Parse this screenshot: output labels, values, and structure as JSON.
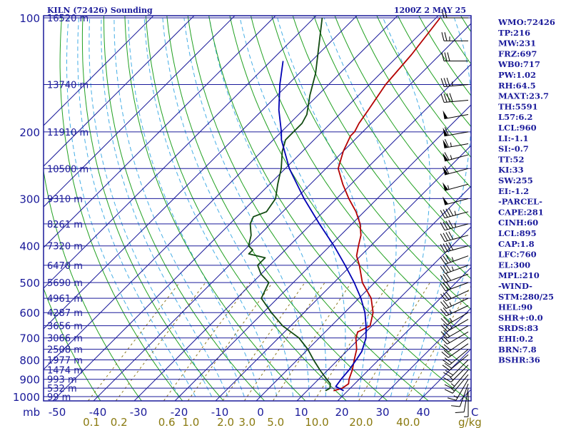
{
  "chart_data": {
    "type": "skew-t",
    "title_left": "KILN (72426) Sounding",
    "title_right": "1200Z  2 MAY 25",
    "pressure_axis": {
      "unit_label": "mb",
      "ticks": [
        {
          "p": 100,
          "label": "100"
        },
        {
          "p": 200,
          "label": "200"
        },
        {
          "p": 300,
          "label": "300"
        },
        {
          "p": 400,
          "label": "400"
        },
        {
          "p": 500,
          "label": "500"
        },
        {
          "p": 600,
          "label": "600"
        },
        {
          "p": 700,
          "label": "700"
        },
        {
          "p": 800,
          "label": "800"
        },
        {
          "p": 900,
          "label": "900"
        },
        {
          "p": 1000,
          "label": "1000"
        }
      ]
    },
    "heights": [
      {
        "p": 100,
        "label": "16520 m"
      },
      {
        "p": 150,
        "label": "13740 m"
      },
      {
        "p": 200,
        "label": "11910 m"
      },
      {
        "p": 250,
        "label": "10500 m"
      },
      {
        "p": 300,
        "label": "9310 m"
      },
      {
        "p": 350,
        "label": "8261 m"
      },
      {
        "p": 400,
        "label": "7320 m"
      },
      {
        "p": 450,
        "label": "6470 m"
      },
      {
        "p": 500,
        "label": "5690 m"
      },
      {
        "p": 550,
        "label": "4961 m"
      },
      {
        "p": 600,
        "label": "4287 m"
      },
      {
        "p": 650,
        "label": "3656 m"
      },
      {
        "p": 700,
        "label": "3066 m"
      },
      {
        "p": 750,
        "label": "2508 m"
      },
      {
        "p": 800,
        "label": "1977 m"
      },
      {
        "p": 850,
        "label": "1474 m"
      },
      {
        "p": 900,
        "label": "993 m"
      },
      {
        "p": 950,
        "label": "532 m"
      },
      {
        "p": 1000,
        "label": "99 m"
      }
    ],
    "temp_axis": {
      "unit_label": "C",
      "ticks": [
        {
          "t": -50,
          "label": "-50"
        },
        {
          "t": -40,
          "label": "-40"
        },
        {
          "t": -30,
          "label": "-30"
        },
        {
          "t": -20,
          "label": "-20"
        },
        {
          "t": -10,
          "label": "-10"
        },
        {
          "t": 0,
          "label": "0"
        },
        {
          "t": 10,
          "label": "10"
        },
        {
          "t": 20,
          "label": "20"
        },
        {
          "t": 30,
          "label": "30"
        },
        {
          "t": 40,
          "label": "40"
        }
      ]
    },
    "mixing_ratio_axis": {
      "unit_label": "g/kg",
      "ticks": [
        {
          "w": 0.1,
          "label": "0.1"
        },
        {
          "w": 0.2,
          "label": "0.2"
        },
        {
          "w": 0.6,
          "label": "0.6"
        },
        {
          "w": 1.0,
          "label": "1.0"
        },
        {
          "w": 2.0,
          "label": "2.0"
        },
        {
          "w": 3.0,
          "label": "3.0"
        },
        {
          "w": 5.0,
          "label": "5.0"
        },
        {
          "w": 10.0,
          "label": "10.0"
        },
        {
          "w": 20.0,
          "label": "20.0"
        },
        {
          "w": 40.0,
          "label": "40.0"
        }
      ]
    },
    "series": [
      {
        "name": "temperature",
        "color": "#b40000",
        "points": [
          [
            965,
            16.5
          ],
          [
            950,
            18
          ],
          [
            925,
            18.5
          ],
          [
            900,
            17.5
          ],
          [
            850,
            16
          ],
          [
            800,
            14
          ],
          [
            750,
            12
          ],
          [
            700,
            9
          ],
          [
            675,
            8
          ],
          [
            650,
            9.5
          ],
          [
            600,
            7
          ],
          [
            550,
            3
          ],
          [
            500,
            -3
          ],
          [
            450,
            -8
          ],
          [
            425,
            -11
          ],
          [
            400,
            -13
          ],
          [
            375,
            -15
          ],
          [
            350,
            -18
          ],
          [
            325,
            -22
          ],
          [
            300,
            -27
          ],
          [
            275,
            -32
          ],
          [
            250,
            -37
          ],
          [
            225,
            -40
          ],
          [
            205,
            -42
          ],
          [
            200,
            -42
          ],
          [
            190,
            -43
          ],
          [
            175,
            -44
          ],
          [
            150,
            -46
          ],
          [
            125,
            -47
          ],
          [
            100,
            -49
          ]
        ]
      },
      {
        "name": "dewpoint",
        "color": "#104a10",
        "points": [
          [
            965,
            14.5
          ],
          [
            950,
            15
          ],
          [
            925,
            14
          ],
          [
            900,
            12
          ],
          [
            850,
            8
          ],
          [
            800,
            4
          ],
          [
            750,
            0
          ],
          [
            700,
            -5
          ],
          [
            650,
            -12
          ],
          [
            600,
            -18
          ],
          [
            550,
            -24
          ],
          [
            500,
            -26
          ],
          [
            475,
            -30
          ],
          [
            450,
            -33
          ],
          [
            430,
            -33
          ],
          [
            420,
            -38
          ],
          [
            410,
            -38
          ],
          [
            400,
            -40
          ],
          [
            375,
            -42
          ],
          [
            350,
            -45
          ],
          [
            335,
            -46
          ],
          [
            325,
            -44
          ],
          [
            300,
            -45
          ],
          [
            275,
            -48
          ],
          [
            250,
            -51
          ],
          [
            225,
            -55
          ],
          [
            210,
            -57
          ],
          [
            200,
            -57
          ],
          [
            190,
            -57
          ],
          [
            180,
            -58
          ],
          [
            160,
            -62
          ],
          [
            140,
            -66
          ],
          [
            100,
            -78
          ]
        ]
      },
      {
        "name": "parcel",
        "color": "#0000b4",
        "points": [
          [
            965,
            19
          ],
          [
            940,
            16
          ],
          [
            895,
            15.5
          ],
          [
            850,
            15.2
          ],
          [
            800,
            14.5
          ],
          [
            760,
            13.8
          ],
          [
            700,
            11.5
          ],
          [
            650,
            8.5
          ],
          [
            600,
            5
          ],
          [
            550,
            0.5
          ],
          [
            500,
            -5
          ],
          [
            450,
            -11.5
          ],
          [
            400,
            -19
          ],
          [
            350,
            -28
          ],
          [
            300,
            -38
          ],
          [
            250,
            -49
          ],
          [
            210,
            -58
          ],
          [
            200,
            -60
          ],
          [
            175,
            -66
          ],
          [
            150,
            -72
          ],
          [
            130,
            -77
          ]
        ]
      }
    ],
    "wind_barbs": [
      {
        "p": 100,
        "dir": 270,
        "spd": 20
      },
      {
        "p": 115,
        "dir": 270,
        "spd": 25
      },
      {
        "p": 130,
        "dir": 270,
        "spd": 30
      },
      {
        "p": 150,
        "dir": 265,
        "spd": 35
      },
      {
        "p": 165,
        "dir": 265,
        "spd": 40
      },
      {
        "p": 180,
        "dir": 260,
        "spd": 50
      },
      {
        "p": 200,
        "dir": 260,
        "spd": 60
      },
      {
        "p": 215,
        "dir": 260,
        "spd": 65
      },
      {
        "p": 230,
        "dir": 255,
        "spd": 65
      },
      {
        "p": 250,
        "dir": 255,
        "spd": 60
      },
      {
        "p": 275,
        "dir": 255,
        "spd": 55
      },
      {
        "p": 300,
        "dir": 255,
        "spd": 50
      },
      {
        "p": 325,
        "dir": 255,
        "spd": 45
      },
      {
        "p": 350,
        "dir": 255,
        "spd": 45
      },
      {
        "p": 375,
        "dir": 255,
        "spd": 40
      },
      {
        "p": 400,
        "dir": 255,
        "spd": 40
      },
      {
        "p": 425,
        "dir": 250,
        "spd": 35
      },
      {
        "p": 450,
        "dir": 250,
        "spd": 35
      },
      {
        "p": 475,
        "dir": 250,
        "spd": 30
      },
      {
        "p": 500,
        "dir": 250,
        "spd": 30
      },
      {
        "p": 525,
        "dir": 245,
        "spd": 30
      },
      {
        "p": 550,
        "dir": 245,
        "spd": 25
      },
      {
        "p": 575,
        "dir": 245,
        "spd": 25
      },
      {
        "p": 600,
        "dir": 240,
        "spd": 25
      },
      {
        "p": 625,
        "dir": 240,
        "spd": 25
      },
      {
        "p": 650,
        "dir": 240,
        "spd": 20
      },
      {
        "p": 675,
        "dir": 240,
        "spd": 20
      },
      {
        "p": 700,
        "dir": 235,
        "spd": 20
      },
      {
        "p": 725,
        "dir": 235,
        "spd": 20
      },
      {
        "p": 750,
        "dir": 230,
        "spd": 20
      },
      {
        "p": 775,
        "dir": 230,
        "spd": 20
      },
      {
        "p": 800,
        "dir": 225,
        "spd": 20
      },
      {
        "p": 825,
        "dir": 225,
        "spd": 15
      },
      {
        "p": 850,
        "dir": 220,
        "spd": 15
      },
      {
        "p": 875,
        "dir": 220,
        "spd": 15
      },
      {
        "p": 900,
        "dir": 210,
        "spd": 15
      },
      {
        "p": 925,
        "dir": 200,
        "spd": 10
      },
      {
        "p": 950,
        "dir": 190,
        "spd": 10
      },
      {
        "p": 975,
        "dir": 180,
        "spd": 5
      }
    ]
  },
  "indices": [
    "WMO:72426",
    "TP:216",
    "MW:231",
    "FRZ:697",
    "WB0:717",
    "PW:1.02",
    "RH:64.5",
    "MAXT:23.7",
    "TH:5591",
    "L57:6.2",
    "LCL:960",
    "LI:-1.1",
    "SI:-0.7",
    "TT:52",
    "KI:33",
    "SW:255",
    "EI:-1.2",
    "-PARCEL-",
    "CAPE:281",
    "CINH:60",
    "LCL:895",
    "CAP:1.8",
    "LFC:760",
    "EL:300",
    "MPL:210",
    "-WIND-",
    "STM:280/25",
    "HEL:90",
    "SHR+:0.0",
    "SRDS:83",
    "EHI:0.2",
    "BRN:7.8",
    "BSHR:36"
  ],
  "colors": {
    "isobar": "#1a1a9a",
    "isotherm": "#1a1a9a",
    "dry_adiabat": "#20a020",
    "moist_adiabat": "#46aee6",
    "mixing_ratio": "#8c7820"
  }
}
